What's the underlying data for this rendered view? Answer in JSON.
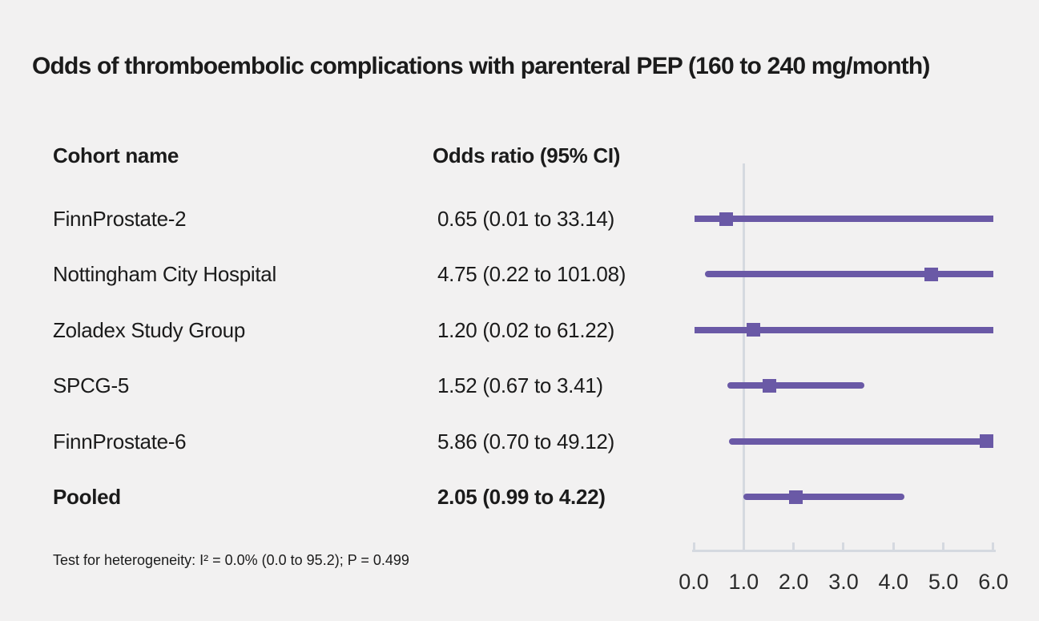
{
  "title": "Odds of thromboembolic complications with parenteral PEP (160 to 240 mg/month)",
  "columns": {
    "cohort": "Cohort name",
    "odds_ratio": "Odds ratio (95% CI)"
  },
  "footnote": "Test for heterogeneity: I² = 0.0% (0.0 to 95.2); P = 0.499",
  "colors": {
    "series": "#6a59a6",
    "axis": "#d5d9e0",
    "background": "#f2f1f1",
    "text": "#1b1b1b"
  },
  "chart_data": {
    "type": "forest",
    "title": "Odds of thromboembolic complications with parenteral PEP (160 to 240 mg/month)",
    "xlabel": "",
    "xlim": [
      0.0,
      6.0
    ],
    "xticks": [
      0.0,
      1.0,
      2.0,
      3.0,
      4.0,
      5.0,
      6.0
    ],
    "xtick_labels": [
      "0.0",
      "1.0",
      "2.0",
      "3.0",
      "4.0",
      "5.0",
      "6.0"
    ],
    "reference_line": 1.0,
    "grid": false,
    "legend": false,
    "rows": [
      {
        "name": "FinnProstate-2",
        "label": "0.65 (0.01 to 33.14)",
        "or": 0.65,
        "ci_low": 0.01,
        "ci_high": 33.14,
        "bold": false
      },
      {
        "name": "Nottingham City Hospital",
        "label": "4.75 (0.22 to 101.08)",
        "or": 4.75,
        "ci_low": 0.22,
        "ci_high": 101.08,
        "bold": false
      },
      {
        "name": "Zoladex Study Group",
        "label": "1.20 (0.02 to 61.22)",
        "or": 1.2,
        "ci_low": 0.02,
        "ci_high": 61.22,
        "bold": false
      },
      {
        "name": "SPCG-5",
        "label": "1.52 (0.67 to 3.41)",
        "or": 1.52,
        "ci_low": 0.67,
        "ci_high": 3.41,
        "bold": false
      },
      {
        "name": "FinnProstate-6",
        "label": "5.86 (0.70 to 49.12)",
        "or": 5.86,
        "ci_low": 0.7,
        "ci_high": 49.12,
        "bold": false
      },
      {
        "name": "Pooled",
        "label": "2.05 (0.99 to 4.22)",
        "or": 2.05,
        "ci_low": 0.99,
        "ci_high": 4.22,
        "bold": true
      }
    ]
  }
}
